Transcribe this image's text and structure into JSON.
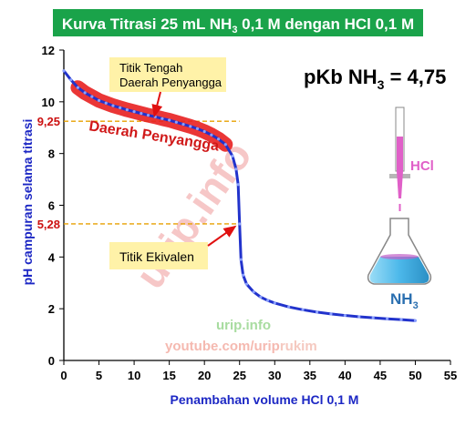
{
  "chart_data": {
    "type": "line",
    "title_main": "Kurva Titrasi 25 mL NH",
    "title_sub1": "3",
    "title_mid": " 0,1 M dengan HCl 0,1 M",
    "xlabel": "Penambahan volume HCl 0,1 M",
    "ylabel": "pH campuran selama titrasi",
    "xlim": [
      0,
      55
    ],
    "ylim": [
      0,
      12
    ],
    "x_ticks": [
      "0",
      "5",
      "10",
      "15",
      "20",
      "25",
      "30",
      "35",
      "40",
      "45",
      "50",
      "55"
    ],
    "y_ticks": [
      "0",
      "2",
      "4",
      "6",
      "8",
      "10",
      "12"
    ],
    "grid": false,
    "series": [
      {
        "color": "#2233cc",
        "x": [
          0,
          1,
          2,
          3,
          4,
          5,
          6,
          7,
          8,
          9,
          10,
          11,
          12,
          13,
          14,
          15,
          16,
          17,
          18,
          19,
          20,
          21,
          22,
          23,
          24,
          24.5,
          24.8,
          25,
          25.2,
          25.5,
          26,
          27,
          28,
          29,
          30,
          32,
          34,
          36,
          38,
          40,
          42,
          44,
          46,
          48,
          50
        ],
        "y": [
          11.2,
          10.85,
          10.55,
          10.35,
          10.2,
          10.05,
          9.95,
          9.85,
          9.77,
          9.69,
          9.62,
          9.55,
          9.48,
          9.42,
          9.35,
          9.29,
          9.21,
          9.13,
          9.05,
          8.96,
          8.85,
          8.72,
          8.56,
          8.35,
          7.9,
          7.4,
          6.8,
          5.28,
          3.9,
          3.3,
          2.95,
          2.65,
          2.45,
          2.32,
          2.22,
          2.07,
          1.96,
          1.87,
          1.8,
          1.74,
          1.69,
          1.65,
          1.61,
          1.58,
          1.54
        ]
      }
    ],
    "reference_lines": [
      {
        "axis": "y",
        "value": 9.25,
        "label": "9,25",
        "color": "#e8a000"
      },
      {
        "axis": "y",
        "value": 5.28,
        "label": "5,28",
        "color": "#e8a000"
      }
    ],
    "buffer_band": {
      "x_from": 2.5,
      "x_to": 22.5,
      "label": "Daerah Penyangga",
      "color": "#e82020"
    },
    "annotations": [
      {
        "line1": "Titik Tengah",
        "line2": "Daerah Penyangga",
        "target_x": 12.5,
        "target_y": 9.25
      },
      {
        "line1": "Titik Ekivalen",
        "target_x": 25,
        "target_y": 5.28
      }
    ],
    "pkb_text": "pKb NH",
    "pkb_sub": "3",
    "pkb_value": " = 4,75",
    "burette_label": "HCl",
    "flask_label": "NH",
    "flask_sub": "3",
    "watermark": "urip.info",
    "credit_line1": "urip.info",
    "credit_line2a": "youtube.com/urip",
    "credit_line2b": "rukim",
    "colors": {
      "title_bg": "#1aa34a",
      "axis_label": "#1c27c4",
      "ref_label": "#cc1111",
      "annotation_bg": "#fff2a8",
      "arrow": "#e01010",
      "burette": "#e060c8",
      "liquid": "#63c8f0",
      "watermark": "#f3b5b5"
    }
  }
}
